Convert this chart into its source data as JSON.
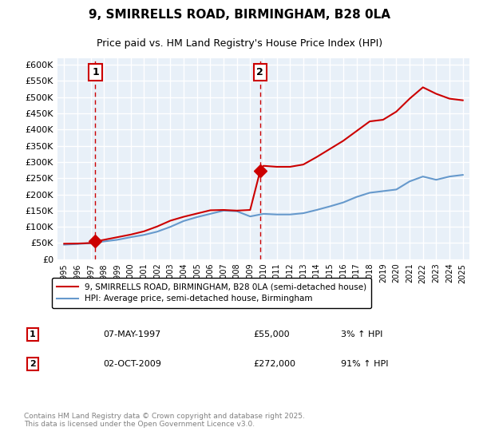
{
  "title": "9, SMIRRELLS ROAD, BIRMINGHAM, B28 0LA",
  "subtitle": "Price paid vs. HM Land Registry's House Price Index (HPI)",
  "background_color": "#e8f0f8",
  "plot_bg_color": "#e8f0f8",
  "ylim": [
    0,
    620000
  ],
  "yticks": [
    0,
    50000,
    100000,
    150000,
    200000,
    250000,
    300000,
    350000,
    400000,
    450000,
    500000,
    550000,
    600000
  ],
  "ytick_labels": [
    "£0",
    "£50K",
    "£100K",
    "£150K",
    "£200K",
    "£250K",
    "£300K",
    "£350K",
    "£400K",
    "£450K",
    "£500K",
    "£550K",
    "£600K"
  ],
  "xlabel_years": [
    "1995",
    "1996",
    "1997",
    "1998",
    "1999",
    "2000",
    "2001",
    "2002",
    "2003",
    "2004",
    "2005",
    "2006",
    "2007",
    "2008",
    "2009",
    "2010",
    "2011",
    "2012",
    "2013",
    "2014",
    "2015",
    "2016",
    "2017",
    "2018",
    "2019",
    "2020",
    "2021",
    "2022",
    "2023",
    "2024",
    "2025"
  ],
  "sale1_year": 1997.35,
  "sale1_price": 55000,
  "sale1_label": "1",
  "sale2_year": 2009.75,
  "sale2_price": 272000,
  "sale2_label": "2",
  "red_line_color": "#cc0000",
  "blue_line_color": "#6699cc",
  "dashed_line_color": "#cc0000",
  "grid_color": "#ffffff",
  "legend_label_red": "9, SMIRRELLS ROAD, BIRMINGHAM, B28 0LA (semi-detached house)",
  "legend_label_blue": "HPI: Average price, semi-detached house, Birmingham",
  "annotation1": "07-MAY-1997",
  "annotation1_price": "£55,000",
  "annotation1_hpi": "3% ↑ HPI",
  "annotation2": "02-OCT-2009",
  "annotation2_price": "£272,000",
  "annotation2_hpi": "91% ↑ HPI",
  "footer": "Contains HM Land Registry data © Crown copyright and database right 2025.\nThis data is licensed under the Open Government Licence v3.0.",
  "hpi_years": [
    1995,
    1996,
    1997,
    1998,
    1999,
    2000,
    2001,
    2002,
    2003,
    2004,
    2005,
    2006,
    2007,
    2008,
    2009,
    2010,
    2011,
    2012,
    2013,
    2014,
    2015,
    2016,
    2017,
    2018,
    2019,
    2020,
    2021,
    2022,
    2023,
    2024,
    2025
  ],
  "hpi_values": [
    45000,
    47000,
    50000,
    55000,
    60000,
    68000,
    75000,
    85000,
    100000,
    118000,
    130000,
    140000,
    150000,
    148000,
    132000,
    140000,
    138000,
    138000,
    142000,
    152000,
    163000,
    175000,
    192000,
    205000,
    210000,
    215000,
    240000,
    255000,
    245000,
    255000,
    260000
  ],
  "red_years": [
    1995,
    1996,
    1997,
    1997.35,
    1998,
    1999,
    2000,
    2001,
    2002,
    2003,
    2004,
    2005,
    2006,
    2007,
    2008,
    2009,
    2009.75,
    2010,
    2011,
    2012,
    2013,
    2014,
    2015,
    2016,
    2017,
    2018,
    2019,
    2020,
    2021,
    2022,
    2023,
    2024,
    2025
  ],
  "red_values": [
    48000,
    48500,
    50000,
    55000,
    60000,
    68000,
    76000,
    86000,
    101000,
    119000,
    131000,
    141000,
    151000,
    152000,
    150000,
    152000,
    272000,
    288000,
    285000,
    285000,
    292000,
    315000,
    340000,
    365000,
    395000,
    425000,
    430000,
    455000,
    495000,
    530000,
    510000,
    495000,
    490000
  ]
}
